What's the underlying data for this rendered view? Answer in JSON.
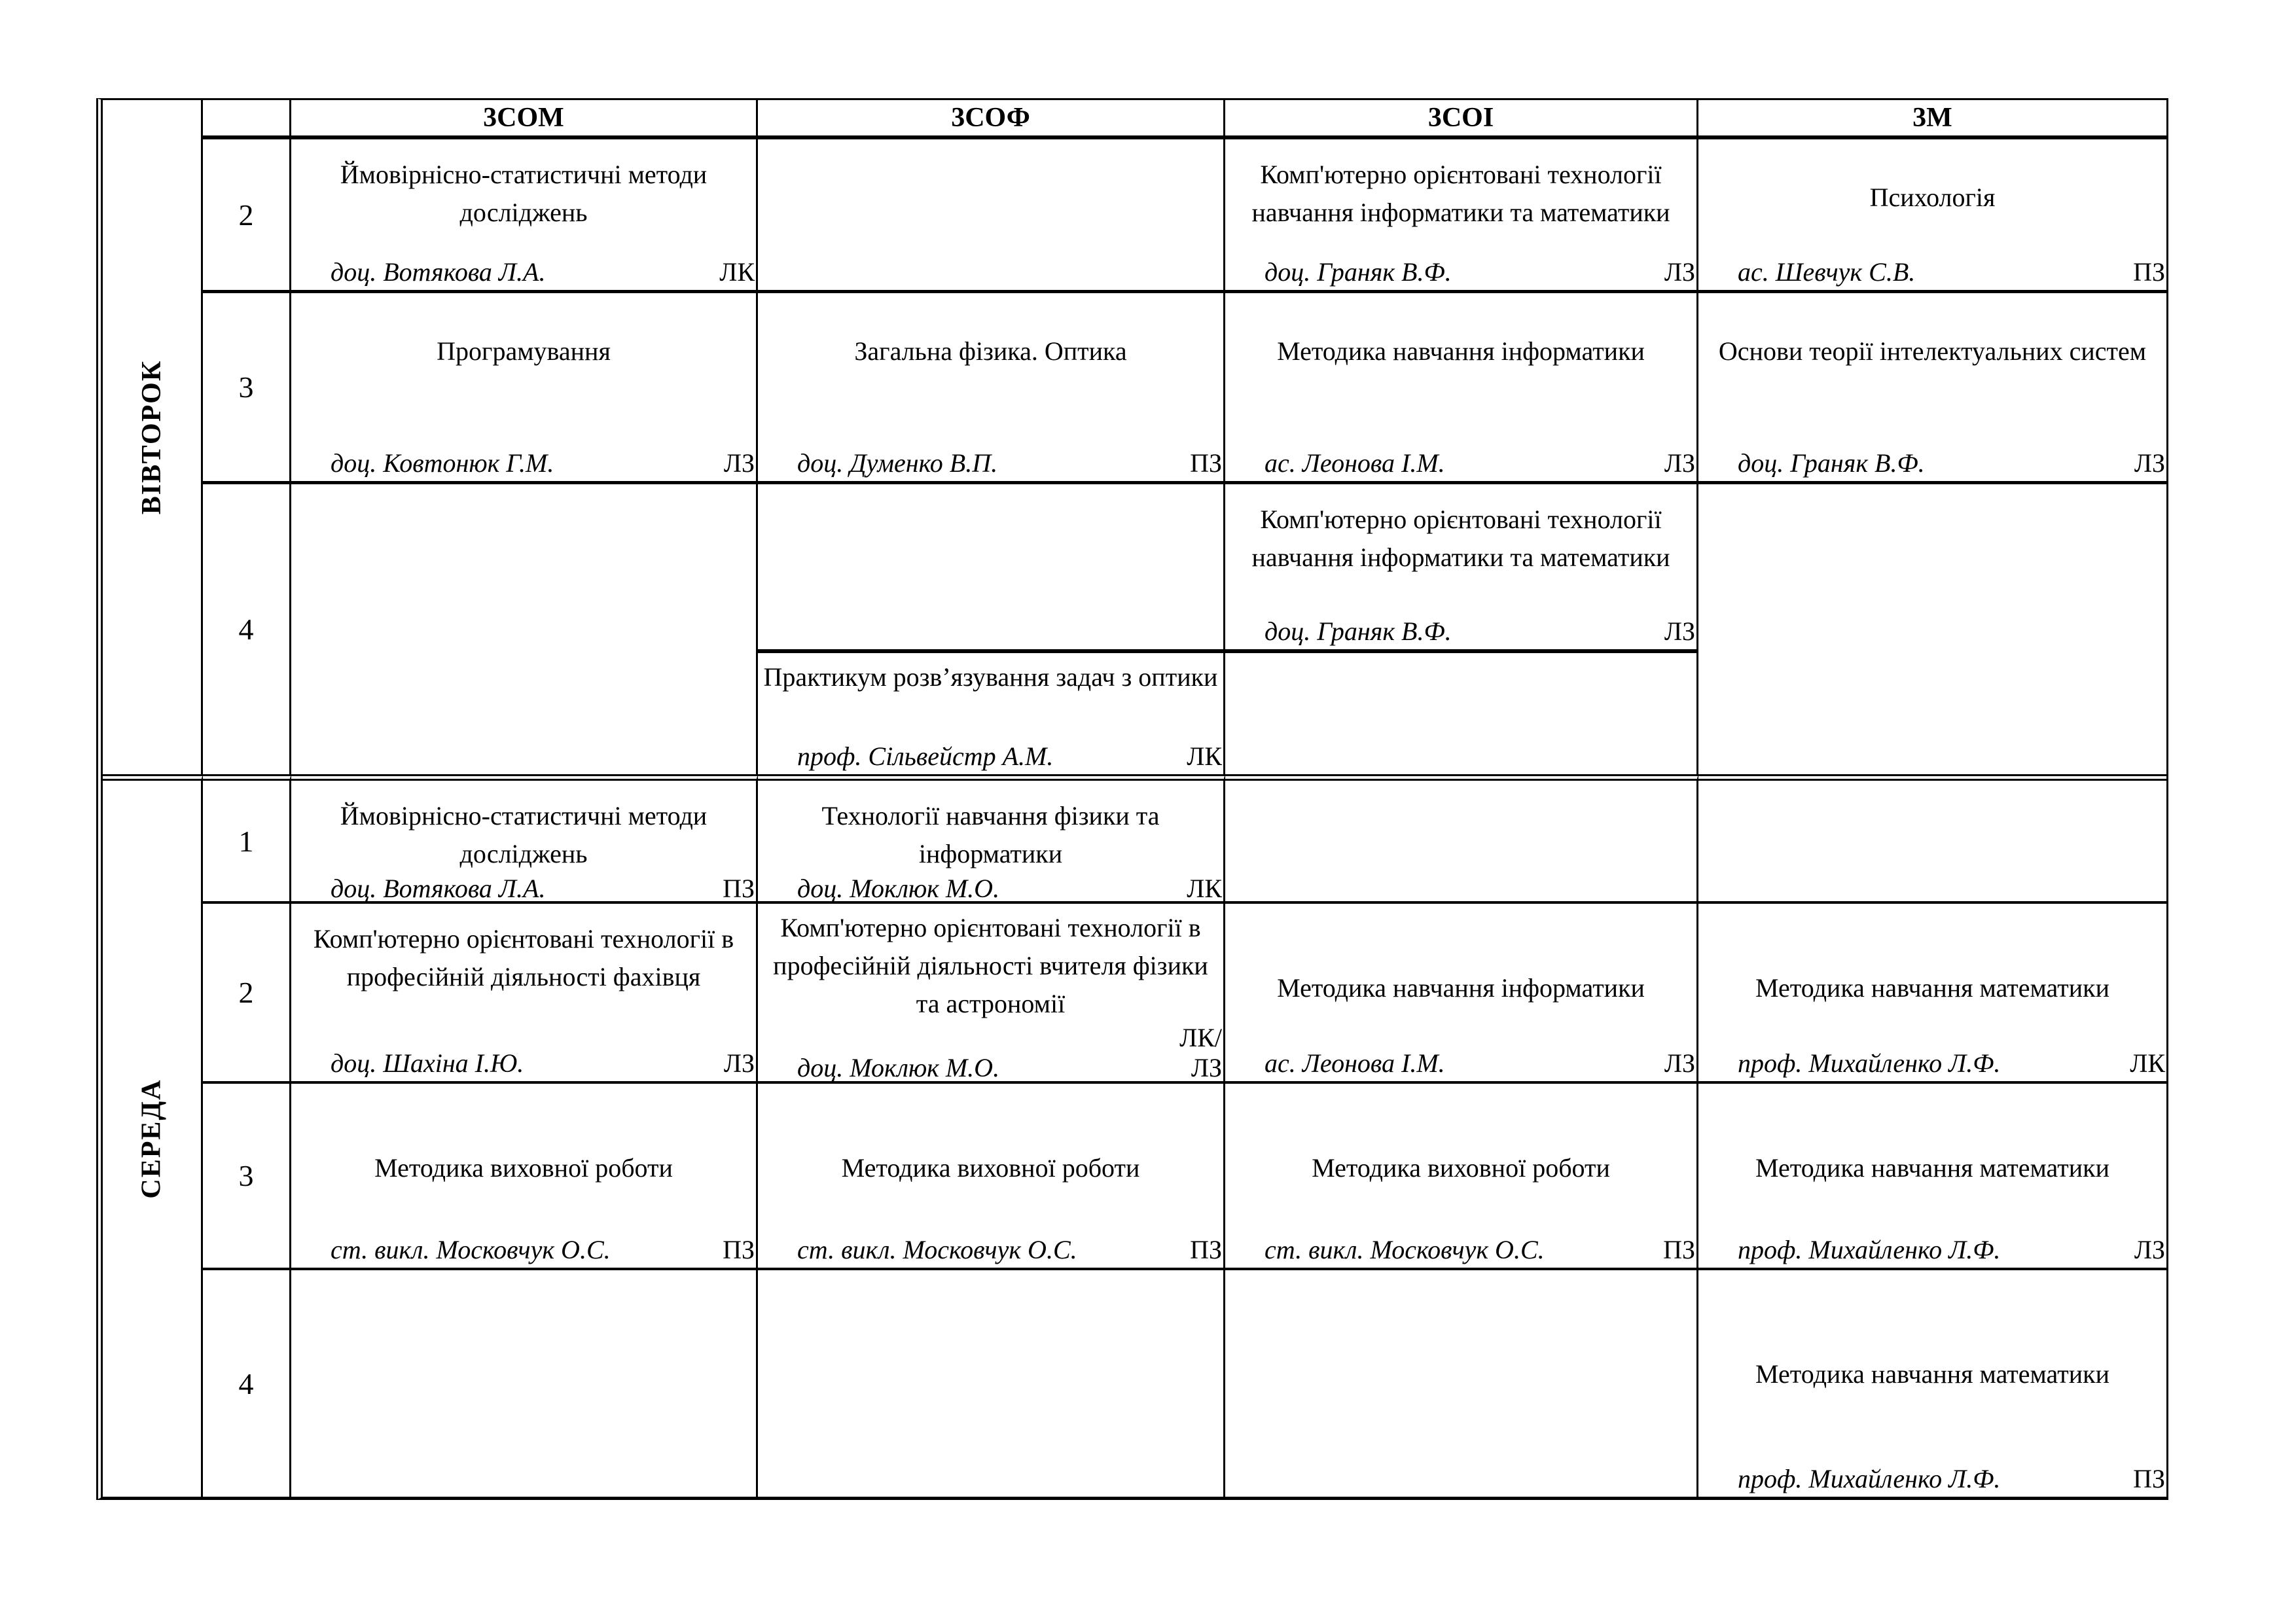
{
  "header": {
    "groups": [
      "3СОМ",
      "3СОФ",
      "3СОІ",
      "3М"
    ]
  },
  "days": {
    "tuesday": {
      "label": "ВІВТОРОК"
    },
    "wednesday": {
      "label": "СЕРЕДА"
    }
  },
  "periods": {
    "t2": "2",
    "t3": "3",
    "t4": "4",
    "w1": "1",
    "w2": "2",
    "w3": "3",
    "w4": "4"
  },
  "lessons": {
    "t2_som": {
      "subject": "Ймовірнісно-статистичні методи досліджень",
      "teacher": "доц. Вотякова Л.А.",
      "type": "ЛК"
    },
    "t2_soi": {
      "subject": "Комп'ютерно орієнтовані технології навчання інформатики та математики",
      "teacher": "доц. Граняк В.Ф.",
      "type": "ЛЗ"
    },
    "t2_m": {
      "subject": "Психологія",
      "teacher": "ас. Шевчук С.В.",
      "type": "ПЗ"
    },
    "t3_som": {
      "subject": "Програмування",
      "teacher": "доц. Ковтонюк Г.М.",
      "type": "ЛЗ"
    },
    "t3_sof": {
      "subject": "Загальна фізика. Оптика",
      "teacher": "доц. Думенко В.П.",
      "type": "ПЗ"
    },
    "t3_soi": {
      "subject": "Методика навчання інформатики",
      "teacher": "ас. Леонова І.М.",
      "type": "ЛЗ"
    },
    "t3_m": {
      "subject": "Основи теорії інтелектуальних систем",
      "teacher": "доц. Граняк В.Ф.",
      "type": "ЛЗ"
    },
    "t4_soi": {
      "subject": "Комп'ютерно орієнтовані технології навчання інформатики та математики",
      "teacher": "доц. Граняк В.Ф.",
      "type": "ЛЗ"
    },
    "t4_sof": {
      "subject": "Практикум розв’язування задач з оптики",
      "teacher": "проф. Сільвейстр А.М.",
      "type": "ЛК"
    },
    "w1_som": {
      "subject": "Ймовірнісно-статистичні методи досліджень",
      "teacher": "доц. Вотякова Л.А.",
      "type": "ПЗ"
    },
    "w1_sof": {
      "subject": "Технології навчання фізики та інформатики",
      "teacher": "доц. Моклюк М.О.",
      "type": "ЛК"
    },
    "w2_som": {
      "subject": "Комп'ютерно орієнтовані технології в професійній діяльності фахівця",
      "teacher": "доц. Шахіна І.Ю.",
      "type": "ЛЗ"
    },
    "w2_sof": {
      "subject": "Комп'ютерно орієнтовані технології в професійній діяльності вчителя фізики та астрономії",
      "teacher": "доц. Моклюк М.О.",
      "type": "ЛК/\nЛЗ"
    },
    "w2_soi": {
      "subject": "Методика навчання інформатики",
      "teacher": "ас. Леонова І.М.",
      "type": "ЛЗ"
    },
    "w2_m": {
      "subject": "Методика навчання математики",
      "teacher": "проф. Михайленко Л.Ф.",
      "type": "ЛК"
    },
    "w3_som": {
      "subject": "Методика виховної роботи",
      "teacher": "ст. викл. Московчук О.С.",
      "type": "ПЗ"
    },
    "w3_sof": {
      "subject": "Методика виховної роботи",
      "teacher": "ст. викл. Московчук О.С.",
      "type": "ПЗ"
    },
    "w3_soi": {
      "subject": "Методика виховної роботи",
      "teacher": "ст. викл. Московчук О.С.",
      "type": "ПЗ"
    },
    "w3_m": {
      "subject": "Методика навчання математики",
      "teacher": "проф. Михайленко Л.Ф.",
      "type": "ЛЗ"
    },
    "w4_m": {
      "subject": "Методика навчання математики",
      "teacher": "проф. Михайленко Л.Ф.",
      "type": "ПЗ"
    }
  }
}
